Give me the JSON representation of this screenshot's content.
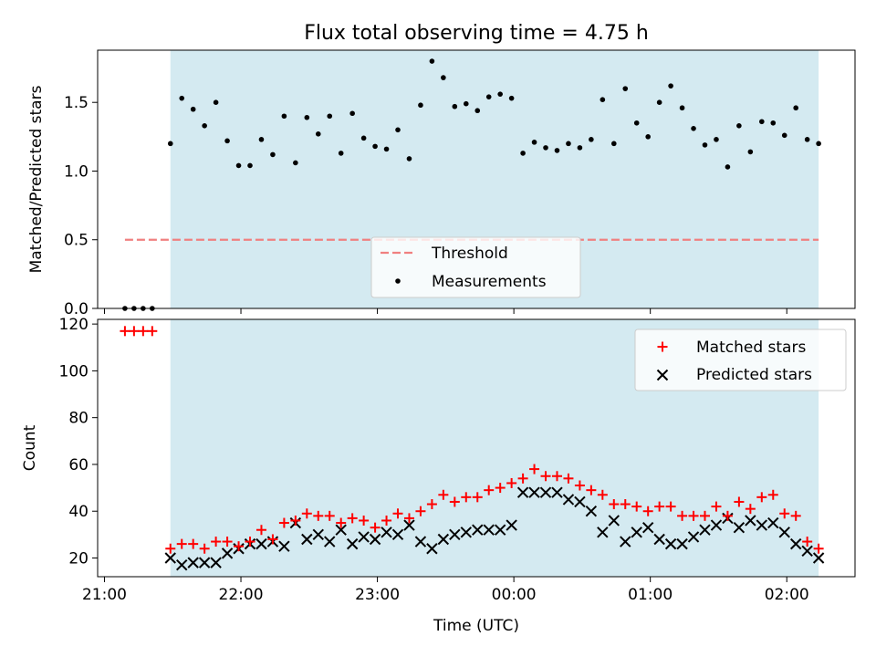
{
  "title": "Flux total observing time = 4.75 h",
  "colors": {
    "shade": "#d4eaf1",
    "threshold": "#f08080",
    "measurement": "#000000",
    "matched": "#ff0000",
    "predicted": "#000000"
  },
  "chart_data": [
    {
      "type": "scatter",
      "ylabel": "Matched/Predicted stars",
      "ylim": [
        0,
        1.88
      ],
      "yticks": [
        "0.0",
        "0.5",
        "1.0",
        "1.5"
      ],
      "shaded_interval": [
        "21:29",
        "02:14"
      ],
      "legend": {
        "placement": "lower-center",
        "entries": [
          "Threshold",
          "Measurements"
        ]
      },
      "series": [
        {
          "name": "Threshold",
          "kind": "line",
          "x": [
            "21:09",
            "02:14"
          ],
          "y": [
            0.5,
            0.5
          ]
        },
        {
          "name": "Measurements",
          "kind": "dots",
          "x": [
            "21:09",
            "21:13",
            "21:17",
            "21:21",
            "21:29",
            "21:34",
            "21:39",
            "21:44",
            "21:49",
            "21:54",
            "21:59",
            "22:04",
            "22:09",
            "22:14",
            "22:19",
            "22:24",
            "22:29",
            "22:34",
            "22:39",
            "22:44",
            "22:49",
            "22:54",
            "22:59",
            "23:04",
            "23:09",
            "23:14",
            "23:19",
            "23:24",
            "23:29",
            "23:34",
            "23:39",
            "23:44",
            "23:49",
            "23:54",
            "23:59",
            "00:04",
            "00:09",
            "00:14",
            "00:19",
            "00:24",
            "00:29",
            "00:34",
            "00:39",
            "00:44",
            "00:49",
            "00:54",
            "00:59",
            "01:04",
            "01:09",
            "01:14",
            "01:19",
            "01:24",
            "01:29",
            "01:34",
            "01:39",
            "01:44",
            "01:49",
            "01:54",
            "01:59",
            "02:04",
            "02:09",
            "02:14"
          ],
          "y": [
            0,
            0,
            0,
            0,
            1.2,
            1.53,
            1.45,
            1.33,
            1.5,
            1.22,
            1.04,
            1.04,
            1.23,
            1.12,
            1.4,
            1.06,
            1.39,
            1.27,
            1.4,
            1.13,
            1.42,
            1.24,
            1.18,
            1.16,
            1.3,
            1.09,
            1.48,
            1.8,
            1.68,
            1.47,
            1.49,
            1.44,
            1.54,
            1.56,
            1.53,
            1.13,
            1.21,
            1.17,
            1.15,
            1.2,
            1.17,
            1.23,
            1.52,
            1.2,
            1.6,
            1.35,
            1.25,
            1.5,
            1.62,
            1.46,
            1.31,
            1.19,
            1.23,
            1.03,
            1.33,
            1.14,
            1.36,
            1.35,
            1.26,
            1.46,
            1.23,
            1.2
          ]
        }
      ]
    },
    {
      "type": "scatter",
      "xlabel": "Time (UTC)",
      "ylabel": "Count",
      "ylim": [
        12,
        122
      ],
      "yticks": [
        "20",
        "40",
        "60",
        "80",
        "100",
        "120"
      ],
      "xticks": [
        "21:00",
        "22:00",
        "23:00",
        "00:00",
        "01:00",
        "02:00"
      ],
      "shaded_interval": [
        "21:29",
        "02:14"
      ],
      "legend": {
        "placement": "upper-right",
        "entries": [
          "Matched stars",
          "Predicted stars"
        ]
      },
      "x": [
        "21:09",
        "21:13",
        "21:17",
        "21:21",
        "21:29",
        "21:34",
        "21:39",
        "21:44",
        "21:49",
        "21:54",
        "21:59",
        "22:04",
        "22:09",
        "22:14",
        "22:19",
        "22:24",
        "22:29",
        "22:34",
        "22:39",
        "22:44",
        "22:49",
        "22:54",
        "22:59",
        "23:04",
        "23:09",
        "23:14",
        "23:19",
        "23:24",
        "23:29",
        "23:34",
        "23:39",
        "23:44",
        "23:49",
        "23:54",
        "23:59",
        "00:04",
        "00:09",
        "00:14",
        "00:19",
        "00:24",
        "00:29",
        "00:34",
        "00:39",
        "00:44",
        "00:49",
        "00:54",
        "00:59",
        "01:04",
        "01:09",
        "01:14",
        "01:19",
        "01:24",
        "01:29",
        "01:34",
        "01:39",
        "01:44",
        "01:49",
        "01:54",
        "01:59",
        "02:04",
        "02:09",
        "02:14"
      ],
      "series": [
        {
          "name": "Matched stars",
          "marker": "plus",
          "x": [
            "21:09",
            "21:13",
            "21:17",
            "21:21",
            "21:29",
            "21:34",
            "21:39",
            "21:44",
            "21:49",
            "21:54",
            "21:59",
            "22:04",
            "22:09",
            "22:14",
            "22:19",
            "22:24",
            "22:29",
            "22:34",
            "22:39",
            "22:44",
            "22:49",
            "22:54",
            "22:59",
            "23:04",
            "23:09",
            "23:14",
            "23:19",
            "23:24",
            "23:29",
            "23:34",
            "23:39",
            "23:44",
            "23:49",
            "23:54",
            "23:59",
            "00:04",
            "00:09",
            "00:14",
            "00:19",
            "00:24",
            "00:29",
            "00:34",
            "00:39",
            "00:44",
            "00:49",
            "00:54",
            "00:59",
            "01:04",
            "01:09",
            "01:14",
            "01:19",
            "01:24",
            "01:29",
            "01:34",
            "01:39",
            "01:44",
            "01:49",
            "01:54",
            "01:59",
            "02:04",
            "02:09",
            "02:14"
          ],
          "values": [
            117,
            117,
            117,
            117,
            24,
            26,
            26,
            24,
            27,
            27,
            25,
            27,
            32,
            28,
            35,
            36,
            39,
            38,
            38,
            35,
            37,
            36,
            33,
            36,
            39,
            37,
            40,
            43,
            47,
            44,
            46,
            46,
            49,
            50,
            52,
            54,
            58,
            55,
            55,
            54,
            51,
            49,
            47,
            43,
            43,
            42,
            40,
            42,
            42,
            38,
            38,
            38,
            42,
            38,
            44,
            41,
            46,
            47,
            39,
            38,
            27,
            24
          ]
        },
        {
          "name": "Predicted stars",
          "marker": "x",
          "x": [
            "21:29",
            "21:34",
            "21:39",
            "21:44",
            "21:49",
            "21:54",
            "21:59",
            "22:04",
            "22:09",
            "22:14",
            "22:19",
            "22:24",
            "22:29",
            "22:34",
            "22:39",
            "22:44",
            "22:49",
            "22:54",
            "22:59",
            "23:04",
            "23:09",
            "23:14",
            "23:19",
            "23:24",
            "23:29",
            "23:34",
            "23:39",
            "23:44",
            "23:49",
            "23:54",
            "23:59",
            "00:04",
            "00:09",
            "00:14",
            "00:19",
            "00:24",
            "00:29",
            "00:34",
            "00:39",
            "00:44",
            "00:49",
            "00:54",
            "00:59",
            "01:04",
            "01:09",
            "01:14",
            "01:19",
            "01:24",
            "01:29",
            "01:34",
            "01:39",
            "01:44",
            "01:49",
            "01:54",
            "01:59",
            "02:04",
            "02:09",
            "02:14"
          ],
          "values": [
            20,
            17,
            18,
            18,
            18,
            22,
            24,
            26,
            26,
            27,
            25,
            35,
            28,
            30,
            27,
            32,
            26,
            29,
            28,
            31,
            30,
            34,
            27,
            24,
            28,
            30,
            31,
            32,
            32,
            32,
            34,
            48,
            48,
            48,
            48,
            45,
            44,
            40,
            31,
            36,
            27,
            31,
            33,
            28,
            26,
            26,
            29,
            32,
            34,
            37,
            33,
            36,
            34,
            35,
            31,
            26,
            23,
            20
          ]
        }
      ]
    }
  ]
}
